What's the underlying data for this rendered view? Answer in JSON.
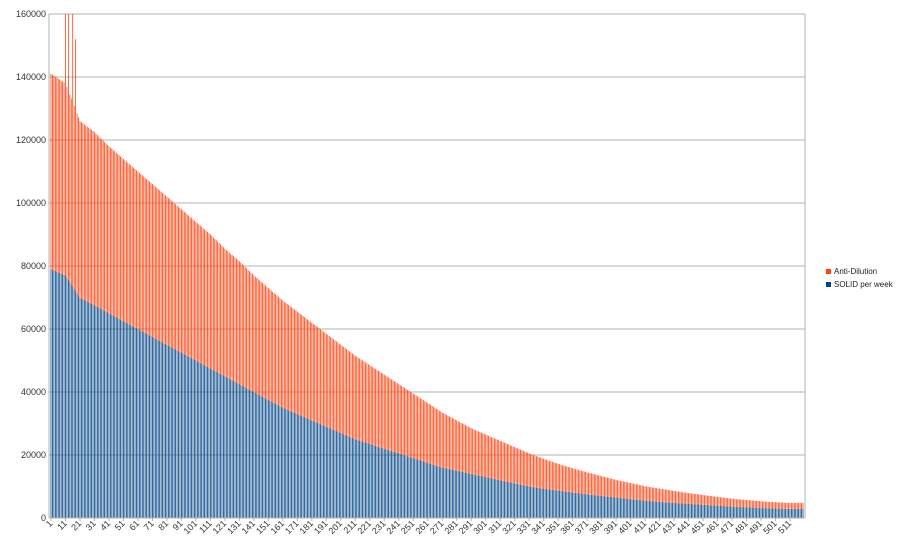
{
  "chart_data": {
    "type": "bar",
    "stacked": true,
    "title": "",
    "xlabel": "",
    "ylabel": "",
    "ylim": [
      0,
      160000
    ],
    "yticks": [
      0,
      20000,
      40000,
      60000,
      80000,
      100000,
      120000,
      140000,
      160000
    ],
    "xticks": [
      1,
      11,
      21,
      31,
      41,
      51,
      61,
      71,
      81,
      91,
      101,
      111,
      121,
      131,
      141,
      151,
      161,
      171,
      181,
      191,
      201,
      211,
      221,
      231,
      241,
      251,
      261,
      271,
      281,
      291,
      301,
      311,
      321,
      331,
      341,
      351,
      361,
      371,
      381,
      391,
      401,
      411,
      421,
      431,
      441,
      451,
      461,
      471,
      481,
      491,
      501,
      511
    ],
    "x_range": [
      1,
      520
    ],
    "grid": true,
    "legend_position": "right",
    "series": [
      {
        "name": "Anti-Dilution",
        "color": "#ff420e",
        "values_at_xticks": [
          62000,
          61000,
          56000,
          55000,
          53000,
          51500,
          50000,
          48500,
          47000,
          45500,
          44000,
          42500,
          40500,
          39000,
          37000,
          35500,
          34000,
          32500,
          31000,
          29500,
          28000,
          26500,
          25000,
          23500,
          22000,
          20500,
          19000,
          17500,
          16000,
          14500,
          13500,
          12500,
          11500,
          10500,
          9500,
          8500,
          7700,
          7000,
          6300,
          5600,
          5100,
          4600,
          4200,
          3800,
          3400,
          3100,
          2800,
          2500,
          2300,
          2100,
          2000,
          1900
        ]
      },
      {
        "name": "SOLID per week",
        "color": "#004586",
        "values_at_xticks": [
          79000,
          77000,
          70000,
          67500,
          65000,
          62500,
          60000,
          57500,
          55000,
          52500,
          50000,
          47500,
          45000,
          42500,
          40000,
          37500,
          35000,
          33000,
          31000,
          29000,
          27000,
          25000,
          23500,
          22000,
          20500,
          19000,
          17500,
          16000,
          15000,
          14000,
          13000,
          12000,
          11000,
          10000,
          9300,
          8700,
          8100,
          7500,
          7000,
          6500,
          6000,
          5500,
          5100,
          4800,
          4500,
          4200,
          3900,
          3600,
          3400,
          3200,
          3000,
          2900
        ]
      }
    ],
    "early_spikes": [
      {
        "x": 11,
        "total": 160000
      },
      {
        "x": 13,
        "total": 160000
      },
      {
        "x": 16,
        "total": 160000
      },
      {
        "x": 18,
        "total": 152000
      }
    ]
  },
  "legend": {
    "items": [
      {
        "label": "Anti-Dilution",
        "color": "#ff420e"
      },
      {
        "label": "SOLID per week",
        "color": "#004586"
      }
    ]
  }
}
